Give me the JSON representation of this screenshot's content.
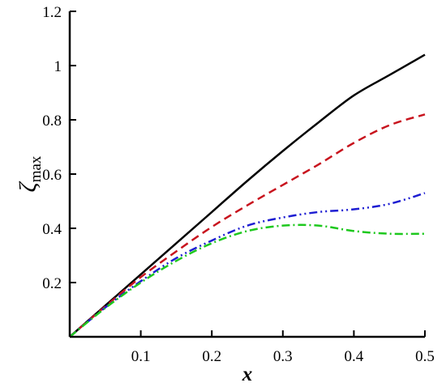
{
  "chart_data": {
    "type": "line",
    "title": "",
    "xlabel": "x",
    "ylabel": {
      "symbol": "ζ",
      "subscript": "max"
    },
    "xlim": [
      0,
      0.5
    ],
    "ylim": [
      0,
      1.2
    ],
    "xticks": [
      0.1,
      0.2,
      0.3,
      0.4,
      0.5
    ],
    "xtick_labels": [
      "0.1",
      "0.2",
      "0.3",
      "0.4",
      "0.5"
    ],
    "yticks": [
      0.2,
      0.4,
      0.6,
      0.8,
      1.0,
      1.2
    ],
    "ytick_labels": [
      "0.2",
      "0.4",
      "0.6",
      "0.8",
      "1",
      "1.2"
    ],
    "grid": false,
    "legend": "none",
    "series": [
      {
        "color": "#000000",
        "dash": "solid",
        "x": [
          0,
          0.05,
          0.1,
          0.15,
          0.2,
          0.25,
          0.3,
          0.35,
          0.4,
          0.45,
          0.5
        ],
        "y": [
          0,
          0.115,
          0.23,
          0.345,
          0.46,
          0.575,
          0.685,
          0.79,
          0.89,
          0.965,
          1.04
        ]
      },
      {
        "color": "#c8141e",
        "dash": "dashed",
        "x": [
          0,
          0.05,
          0.1,
          0.15,
          0.2,
          0.25,
          0.3,
          0.35,
          0.4,
          0.45,
          0.5
        ],
        "y": [
          0,
          0.112,
          0.22,
          0.315,
          0.405,
          0.485,
          0.56,
          0.635,
          0.715,
          0.78,
          0.82
        ]
      },
      {
        "color": "#1e1ed2",
        "dash": "dash-dot-dot",
        "x": [
          0,
          0.05,
          0.1,
          0.15,
          0.2,
          0.25,
          0.3,
          0.35,
          0.4,
          0.45,
          0.5
        ],
        "y": [
          0,
          0.108,
          0.205,
          0.29,
          0.355,
          0.41,
          0.44,
          0.46,
          0.47,
          0.49,
          0.53
        ]
      },
      {
        "color": "#1ec81e",
        "dash": "dash-dot",
        "x": [
          0,
          0.05,
          0.1,
          0.15,
          0.2,
          0.25,
          0.3,
          0.35,
          0.4,
          0.45,
          0.5
        ],
        "y": [
          0,
          0.106,
          0.2,
          0.28,
          0.345,
          0.39,
          0.41,
          0.41,
          0.39,
          0.38,
          0.38
        ]
      }
    ]
  }
}
